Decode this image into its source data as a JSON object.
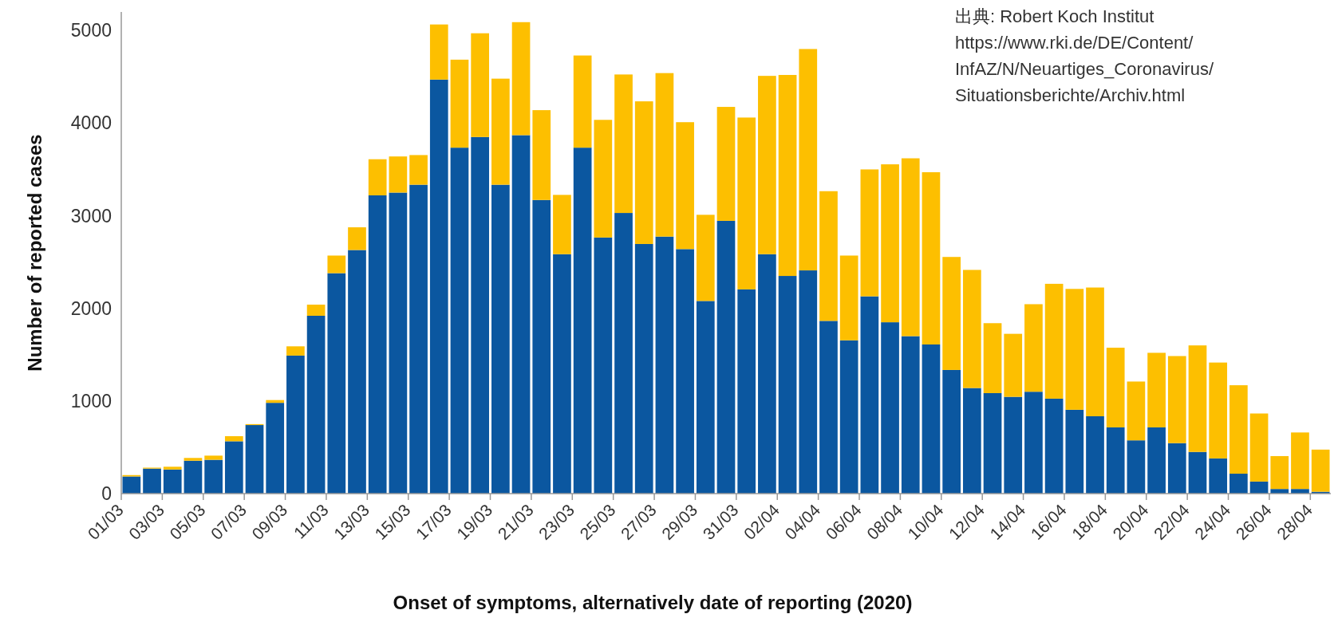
{
  "chart_data": {
    "type": "bar",
    "stacked": true,
    "xlabel": "Onset of symptoms, alternatively date of reporting (2020)",
    "ylabel": "Number of reported cases",
    "annotations": [
      "出典: Robert Koch Institut\nhttps://www.rki.de/DE/Content/\nInfAZ/N/Neuartiges_Coronavirus/\nSituationsberichte/Archiv.html"
    ],
    "categories": [
      "01/03",
      null,
      "03/03",
      null,
      "05/03",
      null,
      "07/03",
      null,
      "09/03",
      null,
      "11/03",
      null,
      "13/03",
      null,
      "15/03",
      null,
      "17/03",
      null,
      "19/03",
      null,
      "21/03",
      null,
      "23/03",
      null,
      "25/03",
      null,
      "27/03",
      null,
      "29/03",
      null,
      "31/03",
      null,
      "02/04",
      null,
      "04/04",
      null,
      "06/04",
      null,
      "08/04",
      null,
      "10/04",
      null,
      "12/04",
      null,
      "14/04",
      null,
      "16/04",
      null,
      "18/04",
      null,
      "20/04",
      null,
      "22/04",
      null,
      "24/04",
      null,
      "26/04",
      null,
      "28/04"
    ],
    "series": [
      {
        "color": "#0b57a0",
        "values": [
          185,
          270,
          260,
          355,
          365,
          565,
          740,
          980,
          1490,
          1920,
          2380,
          2630,
          3220,
          3250,
          3335,
          4470,
          3735,
          3850,
          3335,
          3870,
          3170,
          2585,
          3735,
          2765,
          3030,
          2695,
          2775,
          2640,
          2080,
          2945,
          2205,
          2585,
          2350,
          2410,
          1865,
          1655,
          2130,
          1850,
          1700,
          1610,
          1335,
          1140,
          1085,
          1045,
          1100,
          1025,
          905,
          835,
          715,
          575,
          715,
          545,
          450,
          380,
          215,
          130,
          50,
          50,
          20
        ]
      },
      {
        "color": "#fdbf00",
        "values": [
          15,
          10,
          30,
          30,
          45,
          55,
          10,
          30,
          100,
          120,
          190,
          245,
          390,
          390,
          320,
          595,
          950,
          1120,
          1145,
          1220,
          970,
          640,
          995,
          1270,
          1495,
          1540,
          1765,
          1370,
          930,
          1230,
          1855,
          1925,
          2170,
          2390,
          1400,
          915,
          1370,
          1705,
          1920,
          1860,
          1220,
          1275,
          755,
          680,
          945,
          1240,
          1305,
          1390,
          860,
          635,
          805,
          940,
          1150,
          1035,
          955,
          735,
          355,
          610,
          455
        ]
      }
    ],
    "ylim": [
      0,
      5200
    ],
    "yticks": [
      0,
      1000,
      2000,
      3000,
      4000,
      5000
    ],
    "grid": false
  }
}
